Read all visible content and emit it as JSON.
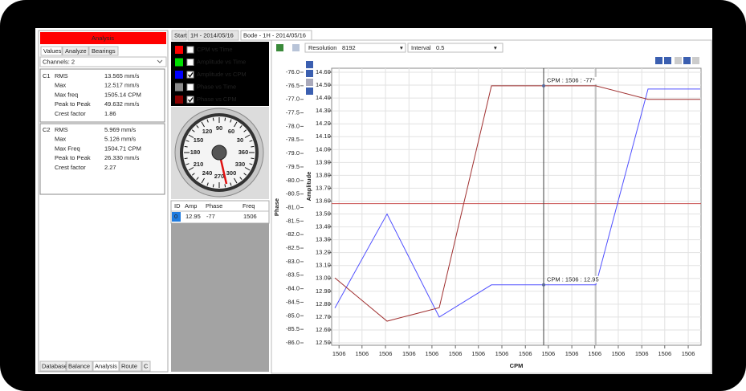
{
  "tabs": [
    "Start",
    "1H - 2014/05/16",
    "Bode - 1H - 2014/05/16"
  ],
  "left_panel": {
    "title": "Analysis",
    "tabs": [
      "Values",
      "Analyze",
      "Bearings"
    ],
    "channels": "Channels: 2",
    "c1": {
      "id": "C1",
      "rows": [
        [
          "RMS",
          "13.565 mm/s"
        ],
        [
          "Max",
          "12.517 mm/s"
        ],
        [
          "Max freq",
          "1505.14 CPM"
        ],
        [
          "Peak to Peak",
          "49.632 mm/s"
        ],
        [
          "Crest factor",
          "1.86"
        ]
      ]
    },
    "c2": {
      "id": "C2",
      "rows": [
        [
          "RMS",
          "5.969 mm/s"
        ],
        [
          "Max",
          "5.126 mm/s"
        ],
        [
          "Max Freq",
          "1504.71 CPM"
        ],
        [
          "Peak to Peak",
          "26.330 mm/s"
        ],
        [
          "Crest factor",
          "2.27"
        ]
      ]
    },
    "bottom_tabs": [
      "Database",
      "Balance",
      "Analysis",
      "Route",
      "C"
    ]
  },
  "legend": [
    {
      "label": "CPM vs Time",
      "color": "#ff0000",
      "checked": false
    },
    {
      "label": "Amplitude vs Time",
      "color": "#00e000",
      "checked": false
    },
    {
      "label": "Amplitude vs CPM",
      "color": "#0000ff",
      "checked": true
    },
    {
      "label": "Phase vs Time",
      "color": "#8c8c8c",
      "checked": false
    },
    {
      "label": "Phase vs CPM",
      "color": "#8b0000",
      "checked": true
    }
  ],
  "gauge": {
    "ticks": [
      30,
      60,
      90,
      120,
      150,
      180,
      210,
      240,
      270,
      300,
      330,
      360
    ],
    "needle": -77
  },
  "table": {
    "headers": [
      "ID",
      "Amp",
      "Phase",
      "Freq"
    ],
    "rows": [
      [
        "0",
        "12.95",
        "-77",
        "1506"
      ]
    ]
  },
  "toolbar": {
    "resolution_label": "Resolution",
    "resolution": "8192",
    "interval_label": "Interval",
    "interval": "0.5"
  },
  "chart_data": {
    "type": "line",
    "x_label": "CPM",
    "y_label": "Amplitude",
    "y2_label": "Phase",
    "x": [
      0,
      1,
      2,
      3,
      4,
      5,
      6,
      7
    ],
    "xlim": [
      0,
      7
    ],
    "xticks": [
      {
        "value": 0.08,
        "label": "1506"
      },
      {
        "value": 0.52,
        "label": "1506"
      },
      {
        "value": 0.97,
        "label": "1506"
      },
      {
        "value": 1.42,
        "label": "1506"
      },
      {
        "value": 1.86,
        "label": "1506"
      },
      {
        "value": 2.31,
        "label": "1506"
      },
      {
        "value": 2.75,
        "label": "1506"
      },
      {
        "value": 3.2,
        "label": "1506"
      },
      {
        "value": 3.65,
        "label": "1506"
      },
      {
        "value": 4.09,
        "label": "1506"
      },
      {
        "value": 4.54,
        "label": "1506"
      },
      {
        "value": 4.98,
        "label": "1506"
      },
      {
        "value": 5.43,
        "label": "1506"
      },
      {
        "value": 5.88,
        "label": "1506"
      },
      {
        "value": 6.32,
        "label": "1506"
      },
      {
        "value": 6.77,
        "label": "1506"
      }
    ],
    "ylim": [
      12.5,
      14.6
    ],
    "yticks": [
      {
        "value": 12.5,
        "label": "12.50"
      },
      {
        "value": 12.6,
        "label": "12.60"
      },
      {
        "value": 12.7,
        "label": "12.70"
      },
      {
        "value": 12.8,
        "label": "12.80"
      },
      {
        "value": 12.9,
        "label": "12.90"
      },
      {
        "value": 13.0,
        "label": "13.00"
      },
      {
        "value": 13.1,
        "label": "13.10"
      },
      {
        "value": 13.2,
        "label": "13.20"
      },
      {
        "value": 13.3,
        "label": "13.30"
      },
      {
        "value": 13.4,
        "label": "13.40"
      },
      {
        "value": 13.5,
        "label": "13.50"
      },
      {
        "value": 13.6,
        "label": "13.60"
      },
      {
        "value": 13.7,
        "label": "13.70"
      },
      {
        "value": 13.8,
        "label": "13.80"
      },
      {
        "value": 13.9,
        "label": "13.90"
      },
      {
        "value": 14.0,
        "label": "14.00"
      },
      {
        "value": 14.1,
        "label": "14.10"
      },
      {
        "value": 14.2,
        "label": "14.20"
      },
      {
        "value": 14.3,
        "label": "14.30"
      },
      {
        "value": 14.4,
        "label": "14.40"
      },
      {
        "value": 14.5,
        "label": "14.50"
      },
      {
        "value": 14.6,
        "label": "14.60"
      }
    ],
    "y2lim": [
      -86,
      -76
    ],
    "y2ticks": [
      {
        "value": -86,
        "label": "-86.0"
      },
      -85.5,
      {
        "value": -85,
        "label": "-85.0"
      },
      -84.5,
      {
        "value": -84,
        "label": "-84.0"
      },
      -83.5,
      {
        "value": -83,
        "label": "-83.0"
      },
      -82.5,
      {
        "value": -82,
        "label": "-82.0"
      },
      -81.5,
      {
        "value": -81,
        "label": "-81.0"
      },
      -80.5,
      {
        "value": -80,
        "label": "-80.0"
      },
      -79.5,
      {
        "value": -79,
        "label": "-79.0"
      },
      -78.5,
      {
        "value": -78,
        "label": "-78.0"
      },
      -77.5,
      {
        "value": -77,
        "label": "-77.0"
      },
      -76.5,
      {
        "value": -76,
        "label": "-76.0"
      }
    ],
    "grid": true,
    "series": [
      {
        "color": "#5050ff",
        "values": [
          12.77,
          13.5,
          12.7,
          12.95,
          12.95,
          12.95,
          14.47,
          14.47
        ]
      },
      {
        "color": "#a03030",
        "axis": "y2",
        "values": [
          -83.6,
          -85.2,
          -84.7,
          -76.5,
          -76.5,
          -76.5,
          -77.0,
          -77.0
        ]
      }
    ],
    "hline": {
      "value": 13.58,
      "color": "#c85050"
    },
    "cursors": [
      {
        "x": 4,
        "color": "#404040"
      },
      {
        "x": 5,
        "color": "#9a9a9a"
      }
    ],
    "annotations": [
      {
        "text": "CPM : 1506 : -77°",
        "x": 4,
        "y": -76.5,
        "axis": "y2"
      },
      {
        "text": "CPM : 1506 : 12.95",
        "x": 4,
        "y": 12.95
      }
    ]
  }
}
